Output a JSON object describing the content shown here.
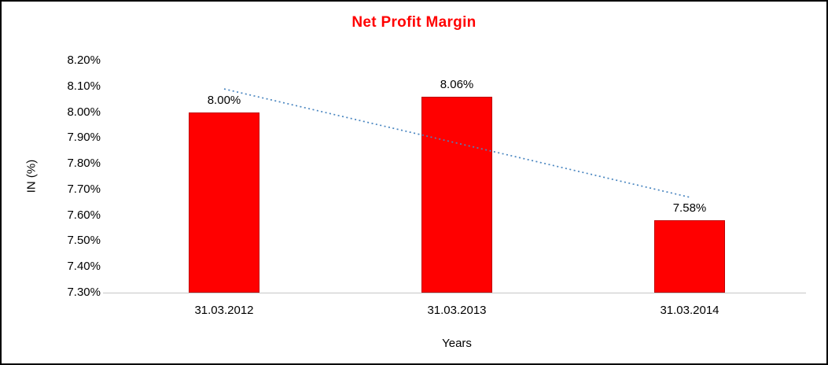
{
  "chart_data": {
    "type": "bar",
    "title": "Net Profit Margin",
    "categories": [
      "31.03.2012",
      "31.03.2013",
      "31.03.2014"
    ],
    "values": [
      8.0,
      8.06,
      7.58
    ],
    "data_labels": [
      "8.00%",
      "8.06%",
      "7.58%"
    ],
    "xlabel": "Years",
    "ylabel": "IN (%)",
    "ylim": [
      7.3,
      8.2
    ],
    "y_ticks": [
      {
        "value": 8.2,
        "label": "8.20%"
      },
      {
        "value": 8.1,
        "label": "8.10%"
      },
      {
        "value": 8.0,
        "label": "8.00%"
      },
      {
        "value": 7.9,
        "label": "7.90%"
      },
      {
        "value": 7.8,
        "label": "7.80%"
      },
      {
        "value": 7.7,
        "label": "7.70%"
      },
      {
        "value": 7.6,
        "label": "7.60%"
      },
      {
        "value": 7.5,
        "label": "7.50%"
      },
      {
        "value": 7.4,
        "label": "7.40%"
      },
      {
        "value": 7.3,
        "label": "7.30%"
      }
    ],
    "grid": false,
    "legend": "none",
    "trendline": {
      "type": "linear",
      "style": "dotted"
    },
    "colors": {
      "title": "#ff0000",
      "bar_fill": "#ff0000",
      "bar_border": "#c00000",
      "trendline": "#4a86c0",
      "axis_line": "#c6c6c6",
      "text": "#000000",
      "frame_border": "#000000",
      "background": "#ffffff"
    }
  }
}
